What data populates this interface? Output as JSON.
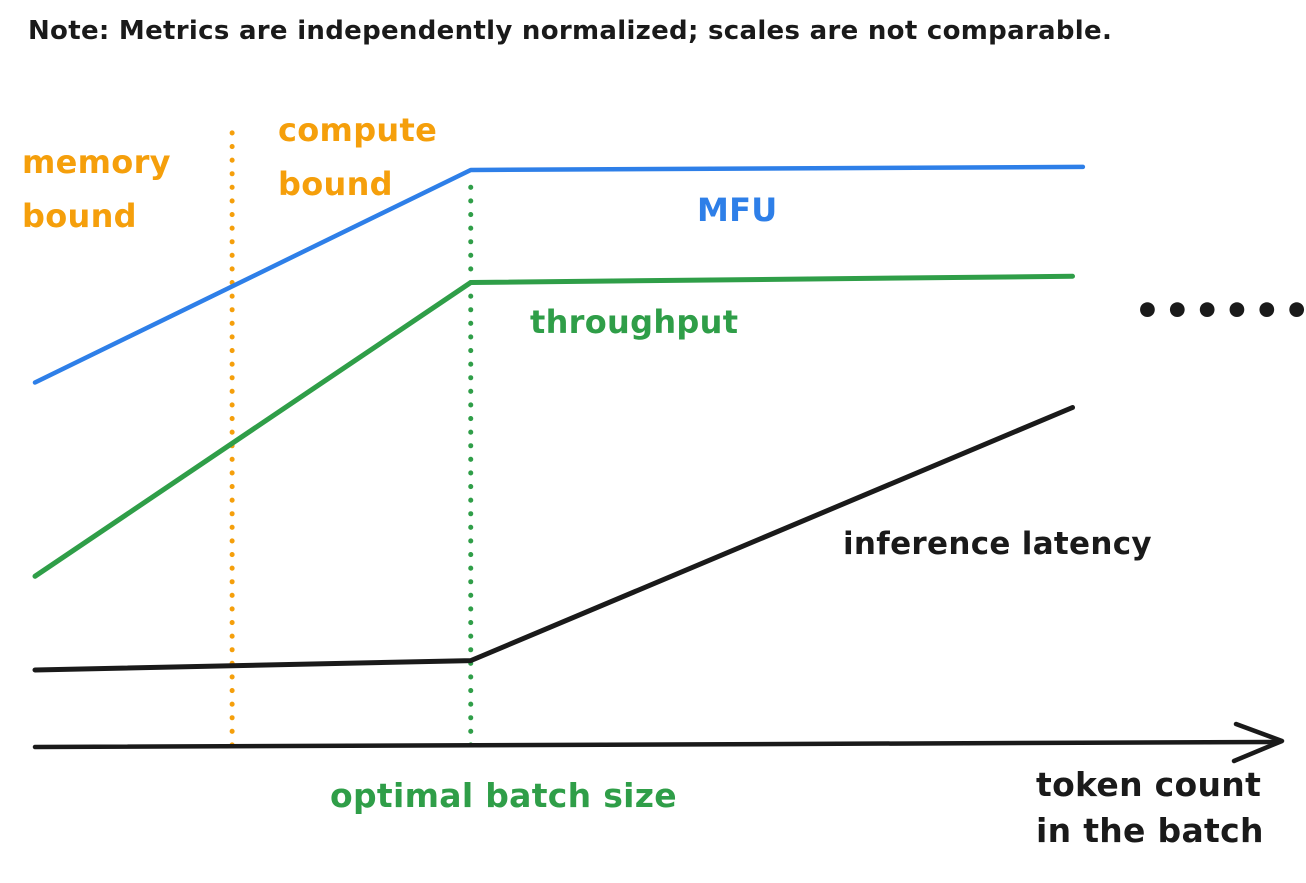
{
  "note": "Note: Metrics are independently normalized; scales are not comparable.",
  "colors": {
    "orange": "#f59f0b",
    "blue": "#2e7fe8",
    "green": "#2f9e48",
    "black": "#1a1a1a"
  },
  "labels": {
    "memory_bound": [
      "memory",
      "bound"
    ],
    "compute_bound": [
      "compute",
      "bound"
    ],
    "mfu": "MFU",
    "throughput": "throughput",
    "inference_latency": "inference latency",
    "optimal_batch_size": "optimal batch size",
    "x_axis": [
      "token count",
      "in the batch"
    ],
    "continuation_dots": "••••••"
  },
  "chart_data": {
    "type": "line",
    "title": "Note: Metrics are independently normalized; scales are not comparable.",
    "xlabel": "token count in the batch",
    "ylabel": "",
    "x_domain": [
      0,
      120
    ],
    "y_domain": [
      0,
      100
    ],
    "axes": {
      "x_arrow": true,
      "y_visible": false,
      "ticks": "none",
      "grid": false
    },
    "legend": "inline-labels",
    "series": [
      {
        "name": "MFU",
        "color": "#2e7fe8",
        "width": 4.5,
        "points": [
          [
            0,
            58
          ],
          [
            42,
            92
          ],
          [
            101,
            92.5
          ]
        ]
      },
      {
        "name": "throughput",
        "color": "#2f9e48",
        "width": 5,
        "points": [
          [
            0,
            27
          ],
          [
            42,
            74
          ],
          [
            100,
            75
          ]
        ]
      },
      {
        "name": "inference latency",
        "color": "#1a1a1a",
        "width": 5,
        "points": [
          [
            0,
            12
          ],
          [
            42,
            13.5
          ],
          [
            100,
            54
          ]
        ]
      }
    ],
    "vlines": [
      {
        "x": 19,
        "y_from": 0,
        "y_to": 99,
        "color": "#f59f0b",
        "style": "dotted",
        "label": "memory bound / compute bound boundary"
      },
      {
        "x": 42,
        "y_from": 0,
        "y_to": 90,
        "color": "#2f9e48",
        "style": "dotted",
        "label": "optimal batch size"
      }
    ],
    "regions": [
      {
        "label": "memory bound",
        "x_from": 0,
        "x_to": 19
      },
      {
        "label": "compute bound",
        "x_from": 19,
        "x_to": 120
      }
    ]
  }
}
